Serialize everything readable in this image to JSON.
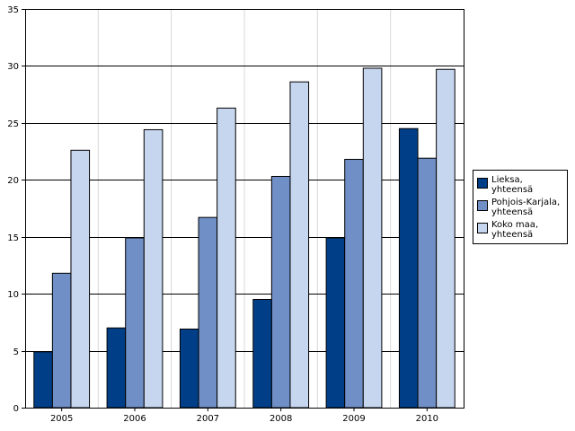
{
  "chart_data": {
    "type": "bar",
    "categories": [
      "2005",
      "2006",
      "2007",
      "2008",
      "2009",
      "2010"
    ],
    "series": [
      {
        "name": "Lieksa,\nyhteensä",
        "color": "#003f87",
        "values": [
          4.9,
          7.0,
          6.9,
          9.5,
          14.9,
          24.5
        ]
      },
      {
        "name": "Pohjois-Karjala,\nyhteensä",
        "color": "#6f8fc6",
        "values": [
          11.8,
          14.9,
          16.7,
          20.3,
          21.8,
          21.9
        ]
      },
      {
        "name": "Koko maa,\nyhteensä",
        "color": "#c6d6ef",
        "values": [
          22.6,
          24.4,
          26.3,
          28.6,
          29.8,
          29.7
        ]
      }
    ],
    "ylim": [
      0,
      35
    ],
    "yticks": [
      "0",
      "5",
      "10",
      "15",
      "20",
      "25",
      "30",
      "35"
    ],
    "grid": true,
    "legend_position": "right"
  }
}
